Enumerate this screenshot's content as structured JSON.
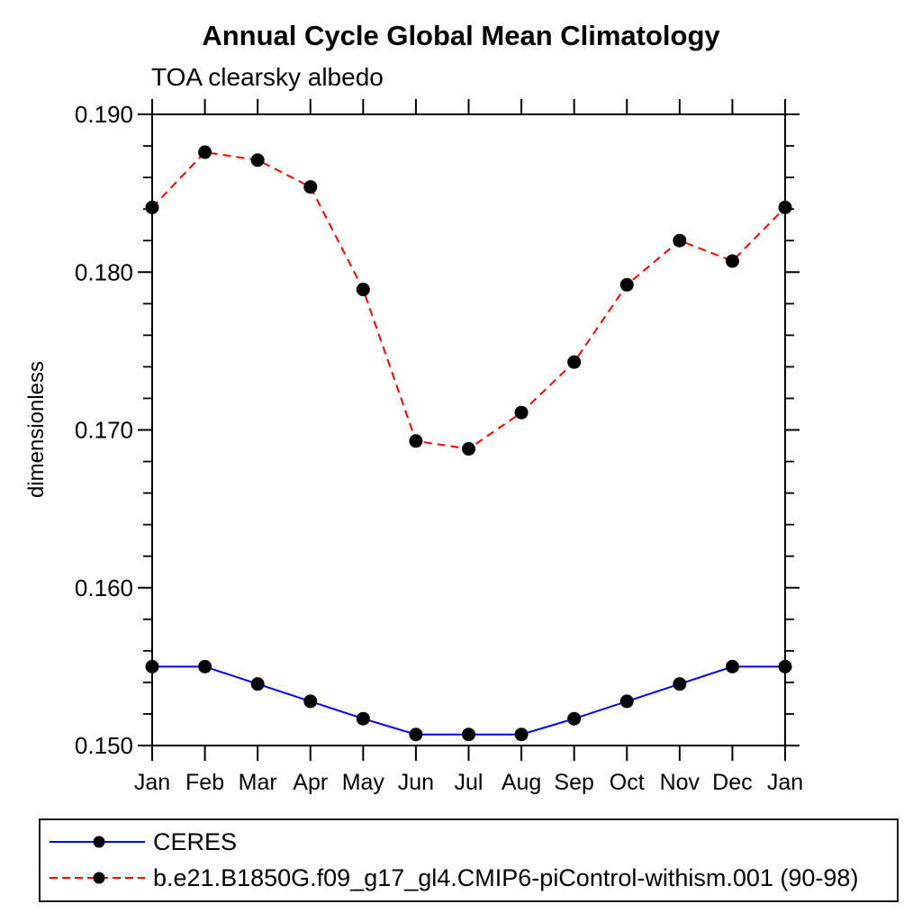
{
  "chart_data": {
    "type": "line",
    "title": "Annual Cycle Global Mean Climatology",
    "subtitle": "TOA clearsky albedo",
    "ylabel": "dimensionless",
    "xlabel": "",
    "x_tick_labels": [
      "Jan",
      "Feb",
      "Mar",
      "Apr",
      "May",
      "Jun",
      "Jul",
      "Aug",
      "Sep",
      "Oct",
      "Nov",
      "Dec",
      "Jan"
    ],
    "ylim": [
      0.15,
      0.19
    ],
    "y_major_ticks": [
      0.15,
      0.16,
      0.17,
      0.18,
      0.19
    ],
    "y_tick_labels": [
      "0.150",
      "0.160",
      "0.170",
      "0.180",
      "0.190"
    ],
    "y_minor_step": 0.002,
    "grid": false,
    "legend_position": "bottom-left-box",
    "marker": "filled-circle",
    "marker_color": "#000000",
    "axis_color": "#000000",
    "series": [
      {
        "name": "CERES",
        "color": "#0000ee",
        "line_style": "solid",
        "values": [
          0.155,
          0.155,
          0.1539,
          0.1528,
          0.1517,
          0.1507,
          0.1507,
          0.1507,
          0.1517,
          0.1528,
          0.1539,
          0.155,
          0.155
        ]
      },
      {
        "name": "b.e21.B1850G.f09_g17_gl4.CMIP6-piControl-withism.001 (90-98)",
        "color": "#ff0000",
        "line_style": "dashed",
        "values": [
          0.1841,
          0.1876,
          0.1871,
          0.1854,
          0.1789,
          0.1693,
          0.1688,
          0.1711,
          0.1743,
          0.1792,
          0.182,
          0.1807,
          0.1841
        ]
      }
    ]
  }
}
